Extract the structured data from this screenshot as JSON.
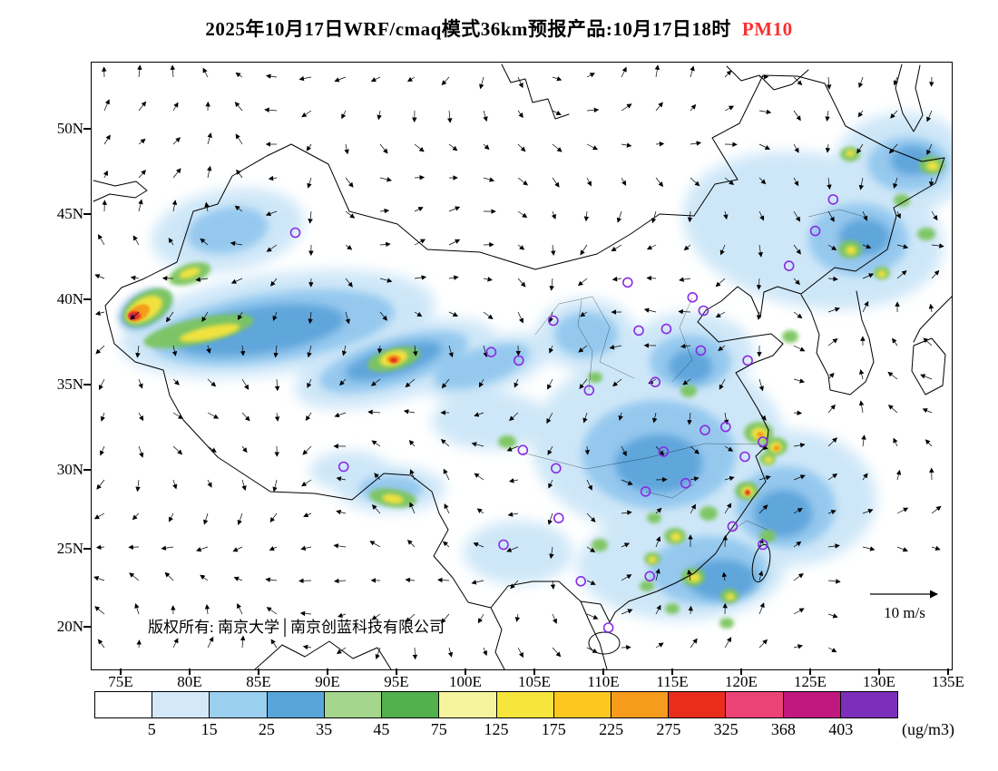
{
  "title": {
    "text": "2025年10月17日WRF/cmaq模式36km预报产品:10月17日18时",
    "pollutant": "PM10",
    "pollutant_color": "#f93030"
  },
  "axes": {
    "lat": [
      "50N",
      "45N",
      "40N",
      "35N",
      "30N",
      "25N",
      "20N"
    ],
    "lon": [
      "75E",
      "80E",
      "85E",
      "90E",
      "95E",
      "100E",
      "105E",
      "110E",
      "115E",
      "120E",
      "125E",
      "130E",
      "135E"
    ]
  },
  "map": {
    "copyright": "版权所有: 南京大学│南京创蓝科技有限公司",
    "wind_scale": "10 m/s"
  },
  "colorbar": {
    "unit": "(ug/m3)",
    "labels": [
      "5",
      "15",
      "25",
      "35",
      "45",
      "75",
      "125",
      "175",
      "225",
      "275",
      "325",
      "368",
      "403"
    ],
    "colors": [
      "#ffffff",
      "#d3e9f9",
      "#9bcff0",
      "#58a5da",
      "#a4d68e",
      "#52b14c",
      "#f5f49c",
      "#f6e53c",
      "#fcc71f",
      "#f79b1d",
      "#ea2c1d",
      "#ec4377",
      "#c0187f",
      "#7c2fbb"
    ]
  },
  "chart_data": {
    "type": "heatmap",
    "title": "2025年10月17日WRF/cmaq模式36km预报产品:10月17日18时 PM10",
    "variable": "PM10",
    "unit": "ug/m3",
    "model": "WRF/cmaq",
    "grid_resolution": "36km",
    "forecast_issue_date": "2025年10月17日",
    "valid_time": "10月17日18时",
    "lon_ticks_deg": [
      75,
      80,
      85,
      90,
      95,
      100,
      105,
      110,
      115,
      120,
      125,
      130,
      135
    ],
    "lat_ticks_deg": [
      50,
      45,
      40,
      35,
      30,
      25,
      20
    ],
    "levels_ugm3": [
      5,
      15,
      25,
      35,
      45,
      75,
      125,
      175,
      225,
      275,
      325,
      368,
      403
    ],
    "level_colors": [
      "#ffffff",
      "#d3e9f9",
      "#9bcff0",
      "#58a5da",
      "#a4d68e",
      "#52b14c",
      "#f5f49c",
      "#f6e53c",
      "#fcc71f",
      "#f79b1d",
      "#ea2c1d",
      "#ec4377",
      "#c0187f",
      "#7c2fbb"
    ],
    "wind_reference_ms": 10,
    "legend_position": "bottom",
    "grid": false,
    "city_markers_lonlat": [
      [
        87.6,
        43.8
      ],
      [
        126.6,
        45.8
      ],
      [
        125.3,
        43.9
      ],
      [
        123.4,
        41.8
      ],
      [
        116.4,
        39.9
      ],
      [
        117.2,
        39.1
      ],
      [
        114.5,
        38.0
      ],
      [
        112.5,
        37.9
      ],
      [
        111.7,
        40.8
      ],
      [
        106.3,
        38.5
      ],
      [
        103.8,
        36.1
      ],
      [
        101.8,
        36.6
      ],
      [
        108.9,
        34.3
      ],
      [
        113.7,
        34.8
      ],
      [
        117.0,
        36.7
      ],
      [
        120.4,
        36.1
      ],
      [
        117.3,
        31.9
      ],
      [
        118.8,
        32.1
      ],
      [
        121.5,
        31.2
      ],
      [
        120.2,
        30.3
      ],
      [
        114.3,
        30.6
      ],
      [
        113.0,
        28.2
      ],
      [
        115.9,
        28.7
      ],
      [
        119.3,
        26.1
      ],
      [
        121.5,
        25.0
      ],
      [
        113.3,
        23.1
      ],
      [
        108.3,
        22.8
      ],
      [
        110.3,
        20.0
      ],
      [
        106.7,
        26.6
      ],
      [
        106.5,
        29.6
      ],
      [
        104.1,
        30.7
      ],
      [
        102.7,
        25.0
      ],
      [
        91.1,
        29.7
      ]
    ],
    "shaded_features": [
      {
        "lon": 76.0,
        "lat": 39.3,
        "approx_value_ugm3": 380,
        "note": "strongest maximum, southwest Xinjiang"
      },
      {
        "lon": 94.8,
        "lat": 36.5,
        "approx_value_ugm3": 260,
        "note": "Qaidam basin secondary maximum"
      },
      {
        "lon": 81.0,
        "lat": 38.5,
        "approx_value_ugm3": 100,
        "note": "elevated band along southern Tarim basin rim"
      },
      {
        "lon": 80.0,
        "lat": 41.5,
        "approx_value_ugm3": 90,
        "note": "northern Xinjiang local spot"
      },
      {
        "lon": 116.0,
        "lat": 37.0,
        "approx_value_ugm3": 60,
        "note": "North China plain moderate values"
      },
      {
        "lon": 119.5,
        "lat": 32.0,
        "approx_value_ugm3": 140,
        "note": "Yangtze delta yellow cluster"
      },
      {
        "lon": 113.5,
        "lat": 26.0,
        "approx_value_ugm3": 130,
        "note": "scattered maxima over south-central China"
      },
      {
        "lon": 126.0,
        "lat": 44.5,
        "approx_value_ugm3": 120,
        "note": "local spots over northeast China"
      },
      {
        "lon": 104.0,
        "lat": 31.0,
        "approx_value_ugm3": 45,
        "note": "Sichuan basin blue shading"
      }
    ],
    "background_note": "most of eastern and central China in 5-45 ug/m3 blue shading; wind vector field overlaid"
  }
}
